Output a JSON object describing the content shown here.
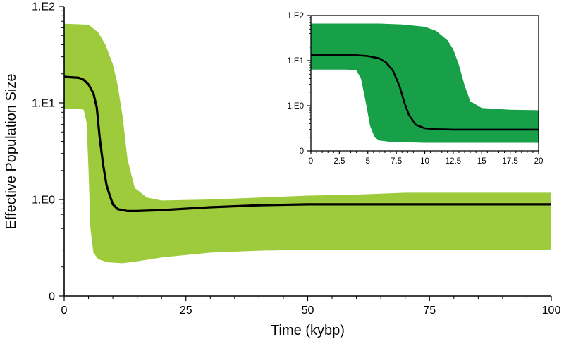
{
  "chart_data": [
    {
      "type": "area",
      "title": "",
      "xlabel": "Time (kybp)",
      "ylabel": "Effective Population Size",
      "xlim": [
        0,
        100
      ],
      "x_ticks": [
        0,
        25,
        50,
        75,
        100
      ],
      "x_tick_labels": [
        "0",
        "25",
        "50",
        "75",
        "100"
      ],
      "y_scale": "log",
      "y_ticks": [
        "1.E2",
        "1.E1",
        "1.E0",
        "0"
      ],
      "grid": false,
      "band_color": "#9ecb3c",
      "line_color": "#000000",
      "median": {
        "x": [
          0,
          3,
          4,
          5,
          6,
          6.7,
          7.3,
          8,
          8.7,
          9.3,
          10,
          11,
          13,
          15,
          20,
          30,
          40,
          50,
          60,
          70,
          80,
          90,
          100
        ],
        "y": [
          1.27,
          1.26,
          1.24,
          1.19,
          1.1,
          0.95,
          0.64,
          0.36,
          0.15,
          0.05,
          -0.05,
          -0.1,
          -0.12,
          -0.12,
          -0.11,
          -0.08,
          -0.06,
          -0.05,
          -0.05,
          -0.05,
          -0.05,
          -0.05,
          -0.05
        ]
      },
      "band_upper": {
        "x": [
          0,
          5,
          7,
          8.5,
          10,
          11,
          12,
          13,
          14.5,
          17,
          20,
          30,
          40,
          50,
          60,
          70,
          80,
          90,
          100
        ],
        "y": [
          1.82,
          1.81,
          1.73,
          1.6,
          1.4,
          1.18,
          0.86,
          0.42,
          0.12,
          0.02,
          -0.01,
          0.0,
          0.02,
          0.04,
          0.05,
          0.07,
          0.07,
          0.07,
          0.07
        ]
      },
      "band_lower": {
        "x": [
          0,
          3,
          4,
          4.6,
          5,
          5.4,
          6,
          7,
          9,
          12,
          15,
          20,
          30,
          40,
          50,
          60,
          70,
          80,
          90,
          100
        ],
        "y": [
          0.94,
          0.94,
          0.93,
          0.8,
          0.3,
          -0.3,
          -0.55,
          -0.62,
          -0.65,
          -0.66,
          -0.64,
          -0.6,
          -0.55,
          -0.53,
          -0.52,
          -0.52,
          -0.52,
          -0.52,
          -0.52,
          -0.52
        ]
      }
    },
    {
      "type": "area",
      "title": "",
      "xlabel": "",
      "ylabel": "",
      "xlim": [
        0,
        20
      ],
      "x_ticks": [
        0,
        2.5,
        5,
        7.5,
        10,
        12.5,
        15,
        17.5,
        20
      ],
      "x_tick_labels": [
        "0",
        "2.5",
        "5",
        "7.5",
        "10",
        "12.5",
        "15",
        "17.5",
        "20"
      ],
      "y_scale": "log",
      "y_ticks": [
        "1.E2",
        "1.E1",
        "1.E0",
        "0"
      ],
      "grid": false,
      "band_color": "#17a048",
      "line_color": "#000000",
      "median": {
        "x": [
          0,
          4,
          5,
          6,
          6.6,
          7.2,
          7.8,
          8.2,
          8.6,
          9.2,
          10,
          11,
          12.5,
          15,
          17.5,
          20
        ],
        "y": [
          1.13,
          1.12,
          1.1,
          1.05,
          0.96,
          0.78,
          0.42,
          0.08,
          -0.2,
          -0.42,
          -0.5,
          -0.52,
          -0.53,
          -0.53,
          -0.53,
          -0.53
        ]
      },
      "band_upper": {
        "x": [
          0,
          6,
          8,
          10,
          11,
          12,
          12.5,
          13,
          13.5,
          14,
          15,
          17.5,
          20
        ],
        "y": [
          1.82,
          1.82,
          1.8,
          1.75,
          1.66,
          1.45,
          1.25,
          0.9,
          0.45,
          0.1,
          -0.05,
          -0.09,
          -0.1
        ],
        "note": ""
      },
      "band_lower": {
        "x": [
          0,
          3.2,
          4,
          4.4,
          4.8,
          5.2,
          5.6,
          6,
          7,
          10,
          15,
          20
        ],
        "y": [
          0.8,
          0.8,
          0.78,
          0.6,
          0.1,
          -0.45,
          -0.7,
          -0.77,
          -0.8,
          -0.82,
          -0.82,
          -0.82
        ]
      }
    }
  ]
}
